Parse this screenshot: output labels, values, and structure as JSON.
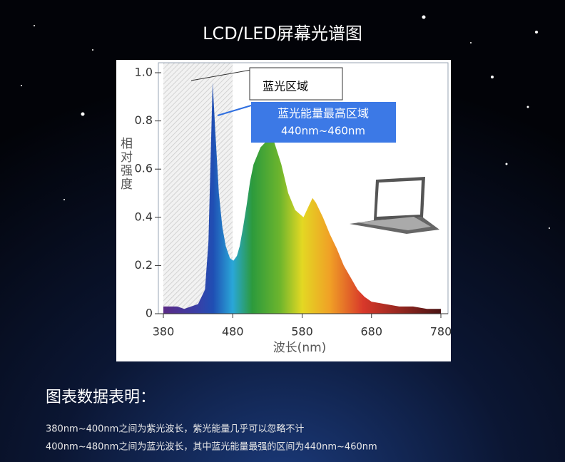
{
  "header": {
    "title": "LCD/LED屏幕光谱图"
  },
  "chart_data": {
    "type": "area",
    "x": [
      380,
      390,
      400,
      410,
      420,
      430,
      440,
      445,
      451,
      455,
      460,
      465,
      470,
      476,
      481,
      486,
      490,
      495,
      500,
      505,
      510,
      520,
      530,
      535,
      540,
      550,
      560,
      570,
      582,
      590,
      595,
      600,
      610,
      620,
      630,
      640,
      650,
      660,
      670,
      680,
      700,
      720,
      740,
      760,
      780
    ],
    "values": [
      0.03,
      0.03,
      0.03,
      0.02,
      0.03,
      0.04,
      0.1,
      0.3,
      0.96,
      0.75,
      0.5,
      0.36,
      0.28,
      0.23,
      0.22,
      0.24,
      0.28,
      0.36,
      0.45,
      0.55,
      0.62,
      0.69,
      0.72,
      0.73,
      0.71,
      0.62,
      0.5,
      0.43,
      0.4,
      0.45,
      0.48,
      0.46,
      0.4,
      0.33,
      0.27,
      0.2,
      0.15,
      0.1,
      0.07,
      0.05,
      0.04,
      0.03,
      0.03,
      0.02,
      0.02
    ],
    "xlim": [
      380,
      780
    ],
    "xticks": [
      380,
      480,
      580,
      680,
      780
    ],
    "ylim": [
      0,
      1
    ],
    "yticks": [
      0,
      0.2,
      0.4,
      0.6,
      0.8,
      {
        "value": 1,
        "label": "1.0"
      }
    ],
    "x_label": "波长(nm)",
    "y_label": "相对强度",
    "highlight_xrange": [
      380,
      480
    ],
    "annotations": {
      "blue_region": "蓝光区域",
      "peak_region": "蓝光能量最高区域",
      "peak_range": "440nm~460nm"
    }
  },
  "notes": {
    "heading": "图表数据表明：",
    "lines": [
      "380nm~400nm之间为紫光波长，紫光能量几乎可以忽略不计",
      "400nm~480nm之间为蓝光波长，其中蓝光能量最强的区间为440nm~460nm"
    ]
  }
}
